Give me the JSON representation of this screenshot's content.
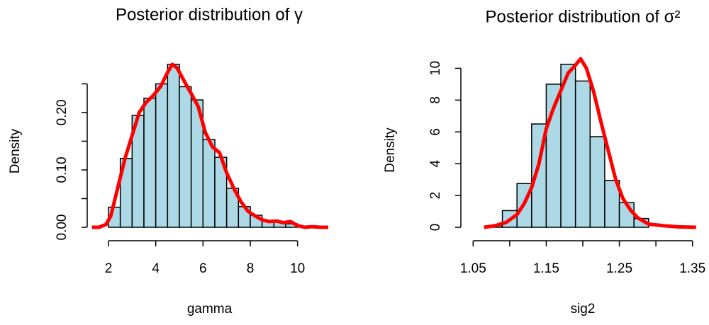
{
  "chart_data": [
    {
      "type": "histogram",
      "title": "Posterior distribution of γ",
      "xlabel": "gamma",
      "ylabel": "Density",
      "bins": [
        2.0,
        2.5,
        3.0,
        3.5,
        4.0,
        4.5,
        5.0,
        5.5,
        6.0,
        6.5,
        7.0,
        7.5,
        8.0,
        8.5,
        9.0,
        9.5,
        10.0
      ],
      "values": [
        0.035,
        0.12,
        0.195,
        0.225,
        0.25,
        0.284,
        0.245,
        0.222,
        0.153,
        0.122,
        0.068,
        0.036,
        0.021,
        0.012,
        0.01,
        0.006
      ],
      "color": "#add8e6",
      "density": {
        "color": "#ff0000",
        "x": [
          1.3,
          1.6,
          1.9,
          2.1,
          2.4,
          2.7,
          3.0,
          3.3,
          3.6,
          3.9,
          4.2,
          4.5,
          4.7,
          4.9,
          5.2,
          5.5,
          5.8,
          6.1,
          6.4,
          6.7,
          7.0,
          7.3,
          7.6,
          7.9,
          8.2,
          8.5,
          8.8,
          9.1,
          9.4,
          9.7,
          10.0,
          10.3,
          10.6,
          11.0,
          11.3
        ],
        "y": [
          0,
          0,
          0.005,
          0.02,
          0.07,
          0.12,
          0.16,
          0.2,
          0.218,
          0.23,
          0.245,
          0.27,
          0.284,
          0.278,
          0.255,
          0.233,
          0.21,
          0.165,
          0.14,
          0.13,
          0.095,
          0.068,
          0.045,
          0.028,
          0.02,
          0.013,
          0.01,
          0.011,
          0.008,
          0.01,
          0.003,
          0,
          0.001,
          0,
          0
        ]
      },
      "xlim": [
        1.25,
        11.3
      ],
      "ylim": [
        0,
        0.29
      ],
      "xticks": [
        2,
        4,
        6,
        8,
        10
      ],
      "yticks": [
        {
          "value": 0,
          "label": "0.00"
        },
        {
          "value": 0.05,
          "label": null
        },
        {
          "value": 0.1,
          "label": "0.10"
        },
        {
          "value": 0.15,
          "label": null
        },
        {
          "value": 0.2,
          "label": "0.20"
        },
        {
          "value": 0.25,
          "label": null
        }
      ]
    },
    {
      "type": "histogram",
      "title": "Posterior distribution of σ²",
      "xlabel": "sig2",
      "ylabel": "Density",
      "bins": [
        1.07,
        1.09,
        1.11,
        1.13,
        1.15,
        1.17,
        1.19,
        1.21,
        1.23,
        1.25,
        1.27,
        1.29
      ],
      "values": [
        0.1,
        1.05,
        2.75,
        6.5,
        9.0,
        10.25,
        9.2,
        5.7,
        2.95,
        1.55,
        0.55
      ],
      "color": "#add8e6",
      "density": {
        "color": "#ff0000",
        "x": [
          1.065,
          1.08,
          1.095,
          1.11,
          1.12,
          1.13,
          1.14,
          1.15,
          1.16,
          1.17,
          1.18,
          1.19,
          1.197,
          1.205,
          1.215,
          1.225,
          1.235,
          1.245,
          1.255,
          1.265,
          1.275,
          1.29,
          1.31,
          1.33,
          1.355
        ],
        "y": [
          0,
          0.1,
          0.3,
          0.8,
          1.5,
          2.5,
          4,
          6.2,
          7.5,
          8.6,
          9.7,
          10.2,
          10.6,
          10,
          8.5,
          6.6,
          4.8,
          3,
          1.8,
          1.1,
          0.6,
          0.2,
          0.1,
          0.03,
          0
        ]
      },
      "xlim": [
        1.04,
        1.36
      ],
      "ylim": [
        0,
        10.6
      ],
      "xticks": [
        1.05,
        {
          "value": 1.1,
          "label": null
        },
        1.15,
        {
          "value": 1.2,
          "label": null
        },
        1.25,
        {
          "value": 1.3,
          "label": null
        },
        1.35
      ],
      "yticks": [
        0,
        2,
        4,
        6,
        8,
        10
      ]
    }
  ]
}
